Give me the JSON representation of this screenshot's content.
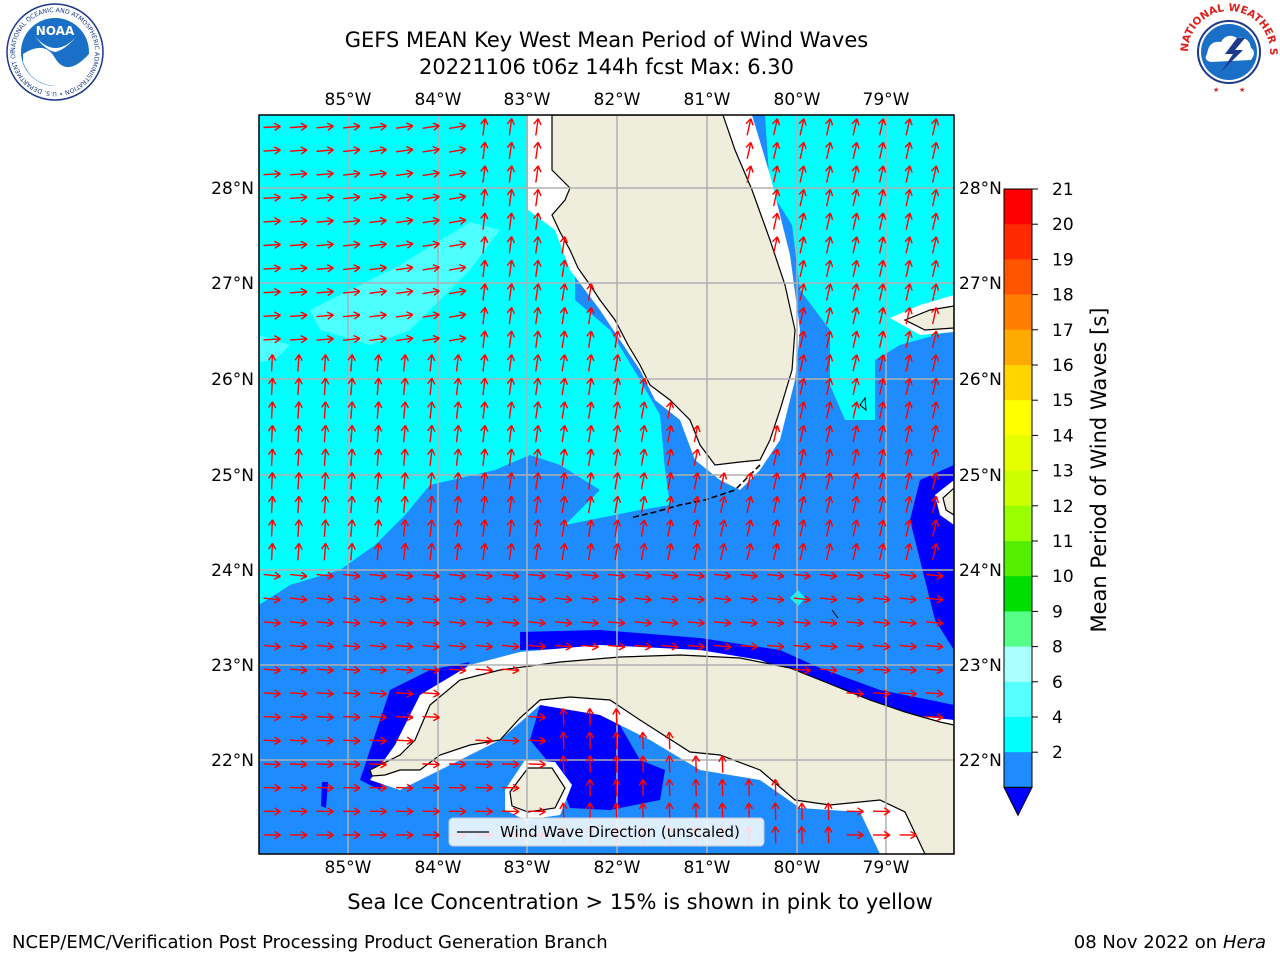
{
  "title": {
    "line1": "GEFS MEAN Key West Mean Period of Wind Waves",
    "line2": "20221106 t06z 144h fcst   Max: 6.30"
  },
  "map": {
    "lon_ticks": [
      "85°W",
      "84°W",
      "83°W",
      "82°W",
      "81°W",
      "80°W",
      "79°W"
    ],
    "lat_ticks": [
      "28°N",
      "27°N",
      "26°N",
      "25°N",
      "24°N",
      "23°N",
      "22°N"
    ],
    "legend_label": "Wind Wave Direction (unscaled)",
    "colors": {
      "band_2_4": "#1e8cff",
      "band_4_6": "#00ffff",
      "band_6_8": "#4dffff",
      "below_2": "#0000ff",
      "land": "#efeddc",
      "arrow": "#ff0000",
      "grid": "#b0b0b0"
    }
  },
  "colorbar": {
    "label": "Mean Period of Wind Waves [s]",
    "ticks": [
      "21",
      "20",
      "19",
      "18",
      "17",
      "16",
      "15",
      "14",
      "13",
      "12",
      "11",
      "10",
      "9",
      "8",
      "6",
      "4",
      "2"
    ],
    "colors": [
      "#ff0000",
      "#ff2a00",
      "#ff5500",
      "#ff8000",
      "#ffaa00",
      "#ffd400",
      "#ffff00",
      "#e6ff00",
      "#ccff00",
      "#99ff00",
      "#55ee00",
      "#00dd00",
      "#55ff88",
      "#aaffff",
      "#55ffff",
      "#00ffff",
      "#1e8cff"
    ],
    "under_color": "#0000ff"
  },
  "footer": {
    "note": "Sea Ice Concentration > 15% is shown in pink to yellow",
    "credit": "NCEP/EMC/Verification Post Processing Product Generation Branch",
    "date": "08 Nov 2022 on",
    "host": "Hera"
  },
  "logos": {
    "noaa_text": "NOAA",
    "noaa_ring": "NATIONAL OCEANIC AND ATMOSPHERIC ADMINISTRATION • U.S. DEPARTMENT OF COMMERCE",
    "nws_ring": "NATIONAL WEATHER SERVICE"
  }
}
